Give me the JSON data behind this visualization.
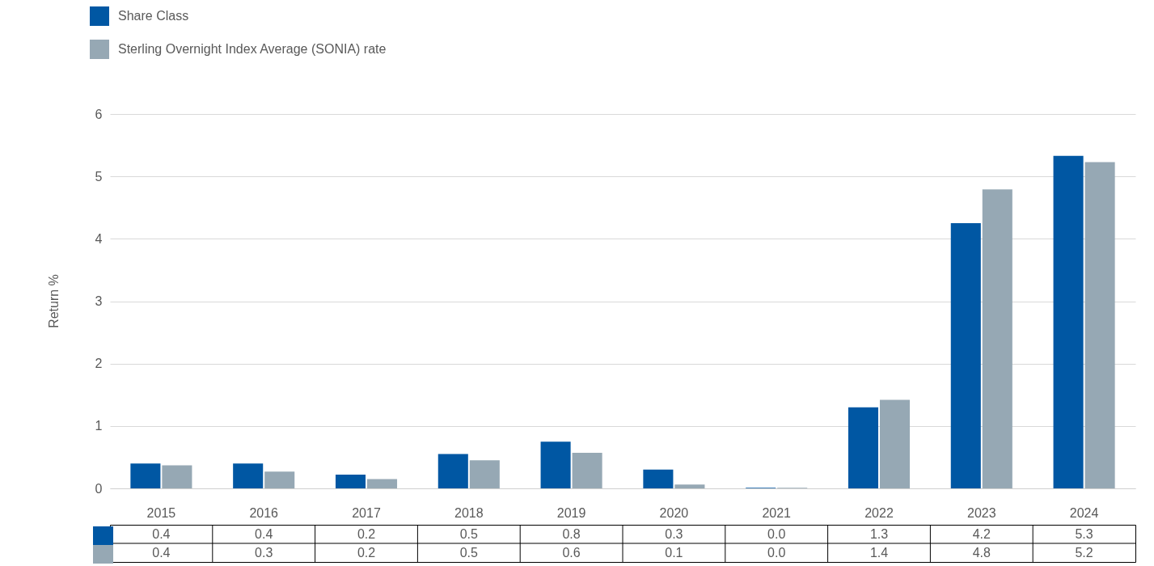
{
  "chart_data": {
    "type": "bar",
    "ylabel": "Return %",
    "categories": [
      "2015",
      "2016",
      "2017",
      "2018",
      "2019",
      "2020",
      "2021",
      "2022",
      "2023",
      "2024"
    ],
    "series": [
      {
        "name": "Share Class",
        "color": "#0057a3",
        "values": [
          0.4,
          0.4,
          0.22,
          0.55,
          0.75,
          0.3,
          0.01,
          1.3,
          4.25,
          5.33
        ],
        "value_labels": [
          "0.4",
          "0.4",
          "0.2",
          "0.5",
          "0.8",
          "0.3",
          "0.0",
          "1.3",
          "4.2",
          "5.3"
        ]
      },
      {
        "name": "Sterling Overnight Index Average (SONIA) rate",
        "color": "#96a8b4",
        "values": [
          0.37,
          0.27,
          0.15,
          0.45,
          0.57,
          0.06,
          0.01,
          1.42,
          4.79,
          5.23
        ],
        "value_labels": [
          "0.4",
          "0.3",
          "0.2",
          "0.5",
          "0.6",
          "0.1",
          "0.0",
          "1.4",
          "4.8",
          "5.2"
        ]
      }
    ],
    "ylim": [
      0,
      6
    ],
    "yticks": [
      0,
      1,
      2,
      3,
      4,
      5,
      6
    ],
    "grid": "y",
    "legend": "top left"
  }
}
